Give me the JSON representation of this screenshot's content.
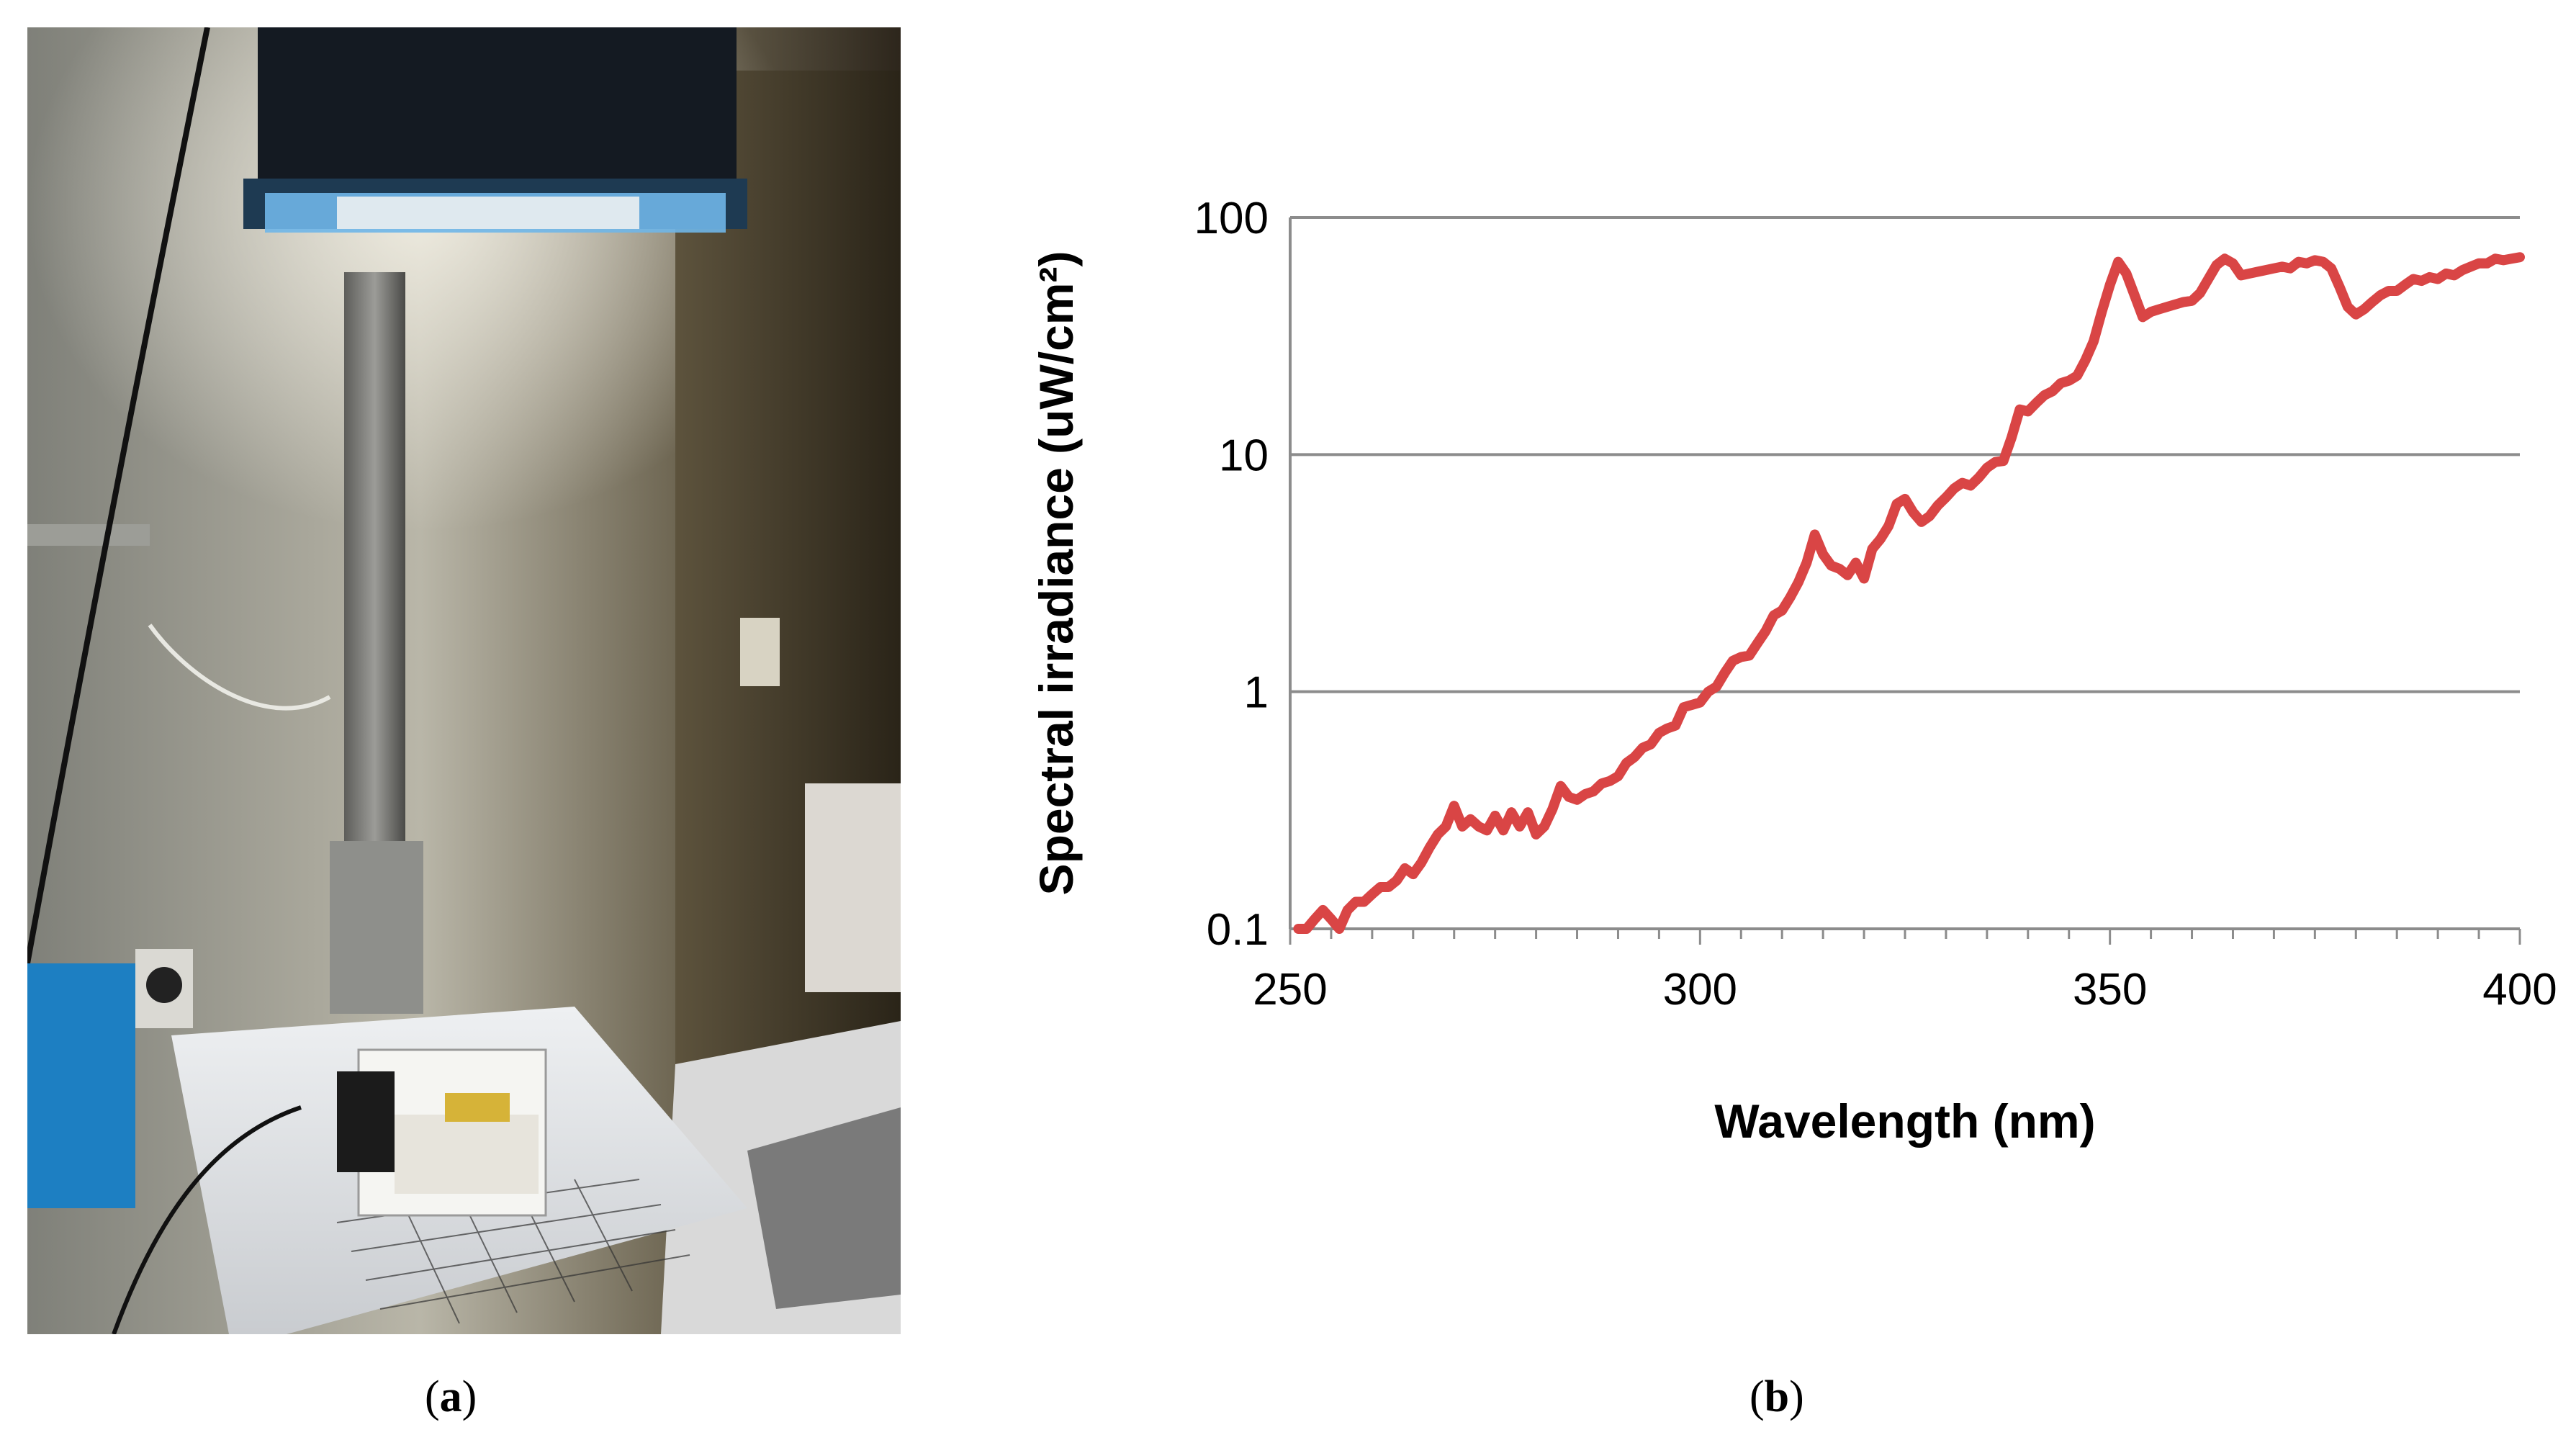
{
  "panels": {
    "a": {
      "label": "a"
    },
    "b": {
      "label": "b"
    }
  },
  "chart_data": {
    "type": "line",
    "title": "",
    "xlabel": "Wavelength (nm)",
    "ylabel": "Spectral irradiance (uW/cm²)",
    "xlim": [
      250,
      400
    ],
    "ylim": [
      0.1,
      100
    ],
    "yscale": "log",
    "x_ticks": [
      "250",
      "300",
      "350",
      "400"
    ],
    "y_ticks": [
      "0.1",
      "1",
      "10",
      "100"
    ],
    "grid": "horizontal",
    "legend": "none",
    "line_color": "#d94545",
    "series": [
      {
        "x": [
          251,
          252,
          253,
          254,
          255,
          256,
          257,
          258,
          259,
          260,
          261,
          262,
          263,
          264,
          265,
          266,
          267,
          268,
          269,
          270,
          271,
          272,
          273,
          274,
          275,
          276,
          277,
          278,
          279,
          280,
          281,
          282,
          283,
          284,
          285,
          286,
          287,
          288,
          289,
          290,
          291,
          292,
          293,
          294,
          295,
          296,
          297,
          298,
          299,
          300,
          301,
          302,
          303,
          304,
          305,
          306,
          307,
          308,
          309,
          310,
          311,
          312,
          313,
          314,
          315,
          316,
          317,
          318,
          319,
          320,
          321,
          322,
          323,
          324,
          325,
          326,
          327,
          328,
          329,
          330,
          331,
          332,
          333,
          334,
          335,
          336,
          337,
          338,
          339,
          340,
          341,
          342,
          343,
          344,
          345,
          346,
          347,
          348,
          349,
          350,
          351,
          352,
          353,
          354,
          355,
          356,
          357,
          358,
          359,
          360,
          361,
          362,
          363,
          364,
          365,
          366,
          367,
          368,
          369,
          370,
          371,
          372,
          373,
          374,
          375,
          376,
          377,
          378,
          379,
          380,
          381,
          382,
          383,
          384,
          385,
          386,
          387,
          388,
          389,
          390,
          391,
          392,
          393,
          394,
          395,
          396,
          397,
          398,
          399,
          400
        ],
        "values": [
          0.1,
          0.1,
          0.11,
          0.12,
          0.11,
          0.1,
          0.12,
          0.13,
          0.13,
          0.14,
          0.15,
          0.15,
          0.16,
          0.18,
          0.17,
          0.19,
          0.22,
          0.25,
          0.27,
          0.33,
          0.27,
          0.29,
          0.27,
          0.26,
          0.3,
          0.26,
          0.31,
          0.27,
          0.31,
          0.25,
          0.27,
          0.32,
          0.4,
          0.36,
          0.35,
          0.37,
          0.38,
          0.41,
          0.42,
          0.44,
          0.5,
          0.53,
          0.58,
          0.6,
          0.67,
          0.7,
          0.72,
          0.86,
          0.88,
          0.9,
          1.0,
          1.05,
          1.2,
          1.35,
          1.4,
          1.42,
          1.6,
          1.8,
          2.1,
          2.2,
          2.5,
          2.9,
          3.5,
          4.6,
          3.8,
          3.4,
          3.3,
          3.1,
          3.5,
          3.0,
          4.0,
          4.4,
          5.0,
          6.2,
          6.5,
          5.7,
          5.2,
          5.5,
          6.1,
          6.6,
          7.2,
          7.6,
          7.4,
          8.0,
          8.8,
          9.3,
          9.4,
          11.8,
          15.5,
          15.2,
          16.5,
          17.8,
          18.5,
          20.0,
          20.5,
          21.5,
          25.0,
          30.0,
          40.0,
          52.0,
          65.0,
          58.0,
          47.0,
          38.0,
          40.0,
          41.0,
          42.0,
          43.0,
          44.0,
          44.5,
          48.0,
          55.0,
          63.0,
          67.0,
          64.0,
          57.0,
          58.0,
          59.0,
          60.0,
          61.0,
          62.0,
          61.0,
          65.0,
          64.0,
          66.0,
          65.0,
          61.0,
          51.0,
          42.0,
          39.0,
          41.0,
          44.0,
          47.0,
          49.0,
          49.0,
          52.0,
          55.0,
          54.0,
          56.0,
          55.0,
          58.0,
          57.0,
          60.0,
          62.0,
          64.0,
          64.0,
          67.0,
          66.0,
          67.0,
          68.0
        ]
      }
    ]
  }
}
